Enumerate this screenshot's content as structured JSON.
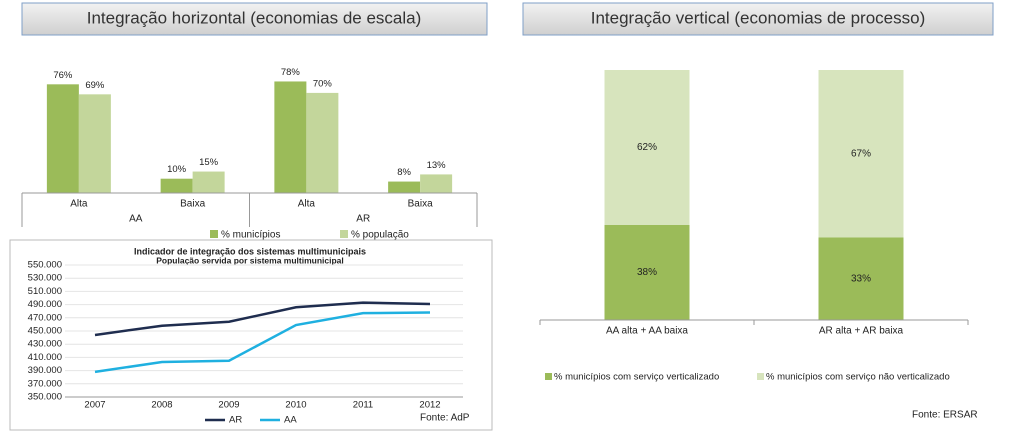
{
  "headers": [
    "Integração horizontal (economias de escala)",
    "Integração vertical (economias de processo)"
  ],
  "chart_data": [
    {
      "type": "bar",
      "categories": [
        "Alta",
        "Baixa",
        "Alta",
        "Baixa"
      ],
      "groups": [
        "AA",
        "AR"
      ],
      "series": [
        {
          "name": "% municípios",
          "color": "#9bbb59",
          "values": [
            76,
            10,
            78,
            8
          ],
          "value_labels": [
            "76%",
            "10%",
            "78%",
            "8%"
          ]
        },
        {
          "name": "% população",
          "color": "#c3d69b",
          "values": [
            69,
            15,
            70,
            13
          ],
          "value_labels": [
            "69%",
            "15%",
            "70%",
            "13%"
          ]
        }
      ]
    },
    {
      "type": "line",
      "title": "Indicador de integração dos sistemas multimunicipais",
      "subtitle": "População servida por sistema multimunicipal",
      "categories": [
        "2007",
        "2008",
        "2009",
        "2010",
        "2011",
        "2012"
      ],
      "series": [
        {
          "name": "AR",
          "color": "#1f2d4f",
          "values": [
            444000,
            458000,
            464000,
            486000,
            493000,
            491000
          ]
        },
        {
          "name": "AA",
          "color": "#1fb0e0",
          "values": [
            388000,
            403000,
            405000,
            459000,
            477000,
            478000
          ]
        }
      ],
      "ylim": [
        350000,
        550000
      ],
      "yticks": [
        {
          "value": 350000,
          "label": "350.000"
        },
        {
          "value": 370000,
          "label": "370.000"
        },
        {
          "value": 390000,
          "label": "390.000"
        },
        {
          "value": 410000,
          "label": "410.000"
        },
        {
          "value": 430000,
          "label": "430.000"
        },
        {
          "value": 450000,
          "label": "450.000"
        },
        {
          "value": 470000,
          "label": "470.000"
        },
        {
          "value": 490000,
          "label": "490.000"
        },
        {
          "value": 510000,
          "label": "510.000"
        },
        {
          "value": 530000,
          "label": "530.000"
        },
        {
          "value": 550000,
          "label": "550.000"
        }
      ],
      "grid": true,
      "source": "Fonte: AdP"
    },
    {
      "type": "stacked_bar",
      "categories": [
        "AA alta + AA baixa",
        "AR alta + AR baixa"
      ],
      "series": [
        {
          "name": "% municípios com serviço verticalizado",
          "color": "#9bbb59",
          "values": [
            38,
            33
          ],
          "value_labels": [
            "38%",
            "33%"
          ]
        },
        {
          "name": "% municípios com serviço não verticalizado",
          "color": "#d7e4bd",
          "values": [
            62,
            67
          ],
          "value_labels": [
            "62%",
            "67%"
          ]
        }
      ],
      "source": "Fonte: ERSAR"
    }
  ]
}
